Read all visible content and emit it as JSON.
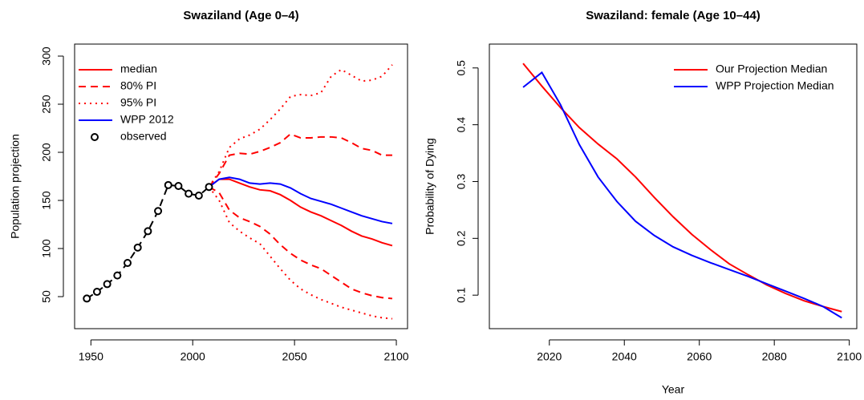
{
  "chart_data": [
    {
      "type": "line",
      "title": "Swaziland (Age 0–4)",
      "y_label": "Population projection",
      "xlim": [
        1942,
        2105.5
      ],
      "xticks": [
        1950,
        2000,
        2050,
        2100
      ],
      "ylim": [
        16.7,
        312.5
      ],
      "yticks": [
        50,
        100,
        150,
        200,
        250,
        300
      ],
      "legend": "topleft",
      "series": [
        {
          "name": "median",
          "color": "#ff0000",
          "linestyle": "solid",
          "x": [
            2008,
            2013,
            2018,
            2023,
            2028,
            2033,
            2038,
            2043,
            2048,
            2053,
            2058,
            2063,
            2068,
            2073,
            2078,
            2083,
            2088,
            2093,
            2098
          ],
          "values": [
            164,
            172,
            172,
            168,
            164,
            161,
            160,
            156,
            150,
            143,
            138,
            134,
            129,
            124,
            118,
            113,
            110,
            106,
            103
          ]
        },
        {
          "name": "80% PI",
          "color": "#ff0000",
          "linestyle": "dashed",
          "x": [
            2008,
            2013,
            2018,
            2023,
            2028,
            2033,
            2038,
            2043,
            2048,
            2053,
            2058,
            2063,
            2068,
            2073,
            2078,
            2083,
            2088,
            2093,
            2098
          ],
          "upper": [
            164,
            178,
            197,
            199,
            198,
            201,
            205,
            210,
            219,
            215,
            215,
            216,
            216,
            215,
            210,
            204,
            202,
            197,
            197
          ],
          "lower": [
            164,
            158,
            140,
            132,
            128,
            123,
            115,
            104,
            95,
            88,
            83,
            79,
            72,
            65,
            58,
            54,
            51,
            49,
            48
          ]
        },
        {
          "name": "95% PI",
          "color": "#ff0000",
          "linestyle": "dotted",
          "x": [
            2008,
            2013,
            2018,
            2023,
            2028,
            2033,
            2038,
            2043,
            2048,
            2053,
            2058,
            2063,
            2068,
            2073,
            2078,
            2083,
            2088,
            2093,
            2098
          ],
          "upper": [
            164,
            180,
            205,
            214,
            218,
            224,
            234,
            245,
            258,
            260,
            259,
            262,
            279,
            286,
            280,
            274,
            275,
            279,
            291
          ],
          "lower": [
            164,
            150,
            127,
            118,
            111,
            105,
            92,
            79,
            67,
            58,
            52,
            47,
            43,
            39,
            36,
            33,
            30,
            28,
            27
          ]
        },
        {
          "name": "WPP 2012",
          "color": "#0000ff",
          "linestyle": "solid",
          "x": [
            2008,
            2013,
            2018,
            2023,
            2028,
            2033,
            2038,
            2043,
            2048,
            2053,
            2058,
            2063,
            2068,
            2073,
            2078,
            2083,
            2088,
            2093,
            2098
          ],
          "values": [
            164,
            172,
            174,
            172,
            168,
            167,
            168,
            167,
            163,
            157,
            152,
            149,
            146,
            142,
            138,
            134,
            131,
            128,
            126
          ]
        },
        {
          "name": "observed",
          "color": "#000000",
          "linestyle": "dashed",
          "marker": "circle",
          "x": [
            1948,
            1953,
            1958,
            1963,
            1968,
            1973,
            1978,
            1983,
            1988,
            1993,
            1998,
            2003,
            2008
          ],
          "values": [
            48,
            55,
            63,
            72,
            85,
            101,
            118,
            139,
            166,
            165,
            157,
            155,
            164
          ]
        }
      ]
    },
    {
      "type": "line",
      "title": "Swaziland: female (Age 10–44)",
      "x_label": "Year",
      "y_label": "Probability of Dying",
      "xlim": [
        2004,
        2102
      ],
      "xticks": [
        2020,
        2040,
        2060,
        2080,
        2100
      ],
      "ylim": [
        0.041,
        0.542
      ],
      "yticks": [
        0.1,
        0.2,
        0.3,
        0.4,
        0.5
      ],
      "legend": "topright",
      "series": [
        {
          "name": "Our Projection Median",
          "color": "#ff0000",
          "linestyle": "solid",
          "x": [
            2013,
            2018,
            2023,
            2028,
            2033,
            2038,
            2043,
            2048,
            2053,
            2058,
            2063,
            2068,
            2073,
            2078,
            2083,
            2088,
            2093,
            2098
          ],
          "values": [
            0.508,
            0.468,
            0.43,
            0.395,
            0.366,
            0.34,
            0.308,
            0.272,
            0.238,
            0.207,
            0.18,
            0.155,
            0.136,
            0.118,
            0.103,
            0.09,
            0.08,
            0.071
          ]
        },
        {
          "name": "WPP Projection Median",
          "color": "#0000ff",
          "linestyle": "solid",
          "x": [
            2013,
            2018,
            2023,
            2028,
            2033,
            2038,
            2043,
            2048,
            2053,
            2058,
            2063,
            2068,
            2073,
            2078,
            2083,
            2088,
            2093,
            2098
          ],
          "values": [
            0.466,
            0.492,
            0.435,
            0.365,
            0.308,
            0.265,
            0.23,
            0.205,
            0.185,
            0.17,
            0.157,
            0.145,
            0.133,
            0.12,
            0.107,
            0.094,
            0.08,
            0.06
          ]
        }
      ]
    }
  ]
}
